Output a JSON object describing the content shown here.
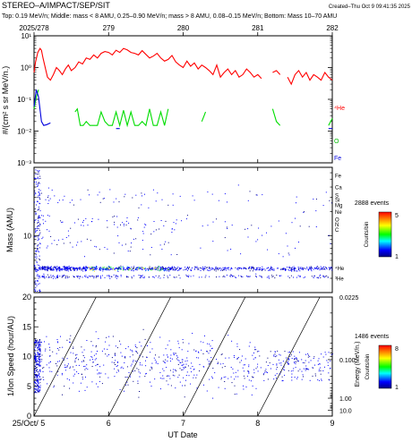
{
  "header": {
    "title": "STEREO–A/IMPACT/SEP/SIT",
    "created": "Created–Thu Oct  9 09:41:35 2025",
    "subtitle": "Top: 0.19 MeV/n; Middle: mass < 8 AMU, 0.25–0.90 MeV/n; mass > 8 AMU, 0.08–0.15 MeV/n; Bottom: Mass 10–70 AMU"
  },
  "top_axis": {
    "ticks": [
      "2025/278",
      "279",
      "280",
      "281",
      "282"
    ]
  },
  "chart_data": [
    {
      "type": "line",
      "panel": "flux",
      "ylabel": "#/(cm² s sr MeV/n.)",
      "yscale": "log",
      "ylim": [
        0.001,
        10
      ],
      "y_tick_labels": [
        "10⁻³",
        "10⁻²",
        "10⁻¹",
        "10⁰",
        "10¹"
      ],
      "xlim": [
        5.0,
        9.0
      ],
      "series": [
        {
          "name": "⁴He",
          "color": "#ff0000",
          "x": [
            5.0,
            5.02,
            5.05,
            5.08,
            5.1,
            5.12,
            5.15,
            5.18,
            5.22,
            5.26,
            5.3,
            5.34,
            5.38,
            5.42,
            5.46,
            5.5,
            5.55,
            5.6,
            5.65,
            5.7,
            5.75,
            5.8,
            5.85,
            5.9,
            5.95,
            6.0,
            6.05,
            6.1,
            6.15,
            6.2,
            6.25,
            6.3,
            6.35,
            6.4,
            6.45,
            6.5,
            6.55,
            6.6,
            6.65,
            6.7,
            6.75,
            6.8,
            6.85,
            6.9,
            6.95,
            7.0,
            7.05,
            7.1,
            7.15,
            7.2,
            7.25,
            7.3,
            7.35,
            7.4,
            7.45,
            7.5,
            7.55,
            7.6,
            7.65,
            7.7,
            7.75,
            7.8,
            7.85,
            7.9,
            7.95,
            8.0,
            8.05,
            8.1,
            8.15,
            8.2,
            8.25,
            8.3,
            8.35,
            8.4,
            8.45,
            8.5,
            8.55,
            8.6,
            8.65,
            8.7,
            8.75,
            8.8,
            8.85,
            8.9,
            8.95,
            9.0
          ],
          "values": [
            0.7,
            1.5,
            3.0,
            4.0,
            3.5,
            2.0,
            1.0,
            0.5,
            0.4,
            0.6,
            1.0,
            0.8,
            0.6,
            0.9,
            1.2,
            0.8,
            1.0,
            1.5,
            1.3,
            2.0,
            1.8,
            2.5,
            2.0,
            2.8,
            3.2,
            3.0,
            2.5,
            3.5,
            3.0,
            4.0,
            3.6,
            3.0,
            2.8,
            2.5,
            3.4,
            2.6,
            2.0,
            2.3,
            2.8,
            2.0,
            1.6,
            1.8,
            2.4,
            1.5,
            1.2,
            1.0,
            1.6,
            1.1,
            1.4,
            0.9,
            1.2,
            1.0,
            0.8,
            0.6,
            1.2,
            0.5,
            0.7,
            0.9,
            0.6,
            0.8,
            0.5,
            0.6,
            0.9,
            0.7,
            0.5,
            0.6,
            0.45,
            null,
            null,
            0.7,
            0.8,
            0.6,
            null,
            0.5,
            0.3,
            0.6,
            0.8,
            0.5,
            0.7,
            0.4,
            0.6,
            0.5,
            0.4,
            0.7,
            0.5,
            0.4
          ]
        },
        {
          "name": "O",
          "color": "#00dd00",
          "x": [
            5.0,
            5.03,
            5.06,
            5.55,
            5.58,
            5.62,
            5.66,
            5.7,
            5.75,
            5.8,
            5.85,
            5.9,
            5.95,
            6.0,
            6.05,
            6.1,
            6.15,
            6.2,
            6.25,
            6.3,
            6.35,
            6.4,
            6.45,
            6.5,
            6.55,
            6.6,
            6.65,
            6.7,
            6.75,
            6.8,
            7.25,
            7.28,
            7.3,
            8.2,
            8.25,
            8.3,
            8.95,
            9.0
          ],
          "values": [
            0.05,
            0.12,
            0.2,
            0.04,
            0.05,
            0.015,
            0.015,
            0.02,
            0.015,
            0.015,
            0.015,
            0.04,
            0.02,
            0.015,
            0.015,
            0.04,
            0.015,
            0.045,
            0.015,
            0.04,
            0.015,
            0.015,
            0.02,
            0.015,
            0.05,
            0.015,
            0.015,
            0.04,
            0.015,
            0.05,
            0.02,
            0.03,
            0.04,
            0.05,
            0.02,
            0.015,
            0.015,
            0.025
          ]
        },
        {
          "name": "Fe",
          "color": "#0000dd",
          "x": [
            5.0,
            5.03,
            5.06,
            5.1,
            5.13,
            5.17,
            5.22,
            6.1,
            6.15,
            8.95,
            9.0
          ],
          "values": [
            0.06,
            0.2,
            0.12,
            0.02,
            0.015,
            0.016,
            0.018,
            0.012,
            0.012,
            0.012,
            0.012
          ]
        }
      ]
    },
    {
      "type": "scatter",
      "panel": "mass",
      "ylabel": "Mass (AMU)",
      "ylim": [
        2,
        70
      ],
      "y_tick_labels": [
        "10"
      ],
      "right_labels": [
        "Fe",
        "Ca",
        "Si",
        "S",
        "Mg",
        "Ne",
        "O",
        "C",
        "N",
        "⁴He",
        "³He"
      ],
      "colorbar": {
        "label": "Counts/bin",
        "events": "2888 events",
        "min_label": "1",
        "max_label": "5"
      }
    },
    {
      "type": "scatter",
      "panel": "velocity",
      "ylabel": "1/Ion Speed (hour/AU)",
      "ylim": [
        0,
        20
      ],
      "y_tick_labels": [
        "0",
        "5",
        "10",
        "15",
        "20"
      ],
      "xlabel": "UT Date",
      "x_tick_labels": [
        "25/Oct/ 5",
        "6",
        "7",
        "8",
        "9"
      ],
      "right_ylabel": "Energy (MeV/n.)",
      "right_tick_labels": [
        "0.0225",
        "0.100",
        "1.00",
        "10.0"
      ],
      "colorbar": {
        "label": "Counts/bin",
        "events": "1486 events",
        "min_label": "1",
        "max_label": "8"
      }
    }
  ]
}
